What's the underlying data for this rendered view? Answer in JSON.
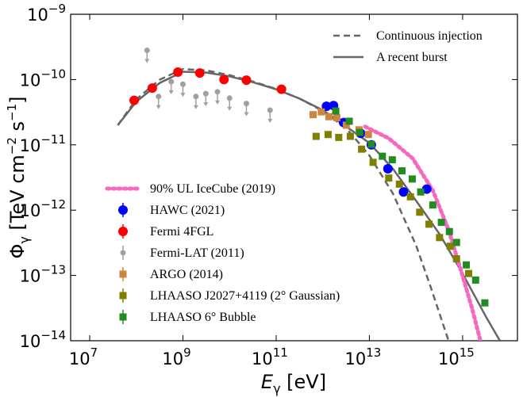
{
  "chart_data": {
    "type": "scatter",
    "log_x": true,
    "log_y": true,
    "xlim": [
      3900000.0,
      1.5e+16
    ],
    "ylim": [
      1e-14,
      1e-09
    ],
    "xticks": [
      {
        "value": 10000000.0,
        "label": "10",
        "exponent": "7"
      },
      {
        "value": 1000000000.0,
        "label": "10",
        "exponent": "9"
      },
      {
        "value": 100000000000.0,
        "label": "10",
        "exponent": "11"
      },
      {
        "value": 10000000000000.0,
        "label": "10",
        "exponent": "13"
      },
      {
        "value": 1000000000000000.0,
        "label": "10",
        "exponent": "15"
      }
    ],
    "yticks": [
      {
        "value": 1e-14,
        "label": "10",
        "exponent": "−14"
      },
      {
        "value": 1e-13,
        "label": "10",
        "exponent": "−13"
      },
      {
        "value": 1e-12,
        "label": "10",
        "exponent": "−12"
      },
      {
        "value": 1e-11,
        "label": "10",
        "exponent": "−11"
      },
      {
        "value": 1e-10,
        "label": "10",
        "exponent": "−10"
      },
      {
        "value": 1e-09,
        "label": "10",
        "exponent": "−9"
      }
    ],
    "x_label": [
      {
        "text": "E",
        "style": "italic"
      },
      {
        "text": "γ",
        "style": "sub"
      },
      {
        "text": " [eV]",
        "style": "normal"
      }
    ],
    "y_label": [
      {
        "text": "Φ",
        "style": "normal"
      },
      {
        "text": "γ",
        "style": "sub"
      },
      {
        "text": " [TeV cm",
        "style": "normal"
      },
      {
        "text": "−2",
        "style": "sup"
      },
      {
        "text": " s",
        "style": "normal"
      },
      {
        "text": "−1",
        "style": "sup"
      },
      {
        "text": "]",
        "style": "normal"
      }
    ],
    "series": [
      {
        "name": "Continuous injection",
        "color": "#666666",
        "style": "dashed",
        "legend": "upper right",
        "x": [
          40000000.0,
          100000000.0,
          320000000.0,
          1000000000.0,
          3200000000.0,
          10000000000.0,
          32000000000.0,
          100000000000.0,
          320000000000.0,
          1000000000000.0,
          3200000000000.0,
          10000000000000.0,
          32000000000000.0,
          100000000000000.0,
          200000000000000.0,
          500000000000000.0
        ],
        "values": [
          2e-11,
          5e-11,
          1e-10,
          1.45e-10,
          1.38e-10,
          1.17e-10,
          9.3e-11,
          7.2e-11,
          5.1e-11,
          3.3e-11,
          1.8e-11,
          6.9e-12,
          1.8e-12,
          2.9e-13,
          7.1e-14,
          1e-14
        ]
      },
      {
        "name": "A recent burst",
        "color": "#666666",
        "style": "solid",
        "legend": "upper right",
        "x": [
          40000000.0,
          100000000.0,
          320000000.0,
          1000000000.0,
          3200000000.0,
          10000000000.0,
          32000000000.0,
          100000000000.0,
          320000000000.0,
          1000000000000.0,
          3200000000000.0,
          10000000000000.0,
          32000000000000.0,
          100000000000000.0,
          320000000000000.0,
          1000000000000000.0,
          3200000000000000.0,
          6300000000000000.0
        ],
        "values": [
          2e-11,
          4.6e-11,
          8.9e-11,
          1.32e-10,
          1.28e-10,
          1.12e-10,
          9.1e-11,
          7.1e-11,
          5.1e-11,
          3.4e-11,
          1.9e-11,
          1.07e-11,
          4.3e-12,
          1.4e-12,
          4.3e-13,
          1.07e-13,
          2.3e-14,
          1e-14
        ]
      },
      {
        "name": "90% UL IceCube (2019)",
        "color": "#f768c0",
        "style": "dotted",
        "legend": "lower left",
        "x": [
          8100000000000.0,
          26000000000000.0,
          85000000000000.0,
          230000000000000.0,
          500000000000000.0,
          910000000000000.0,
          1600000000000000.0,
          2400000000000000.0
        ],
        "values": [
          1.9e-11,
          1.26e-11,
          6.2e-12,
          2e-12,
          5e-13,
          1.23e-13,
          3.1e-14,
          1e-14
        ]
      },
      {
        "name": "HAWC (2021)",
        "color": "#0000ff",
        "style": "circle",
        "legend": "lower left",
        "x": [
          1200000000000.0,
          1700000000000.0,
          2800000000000.0,
          6500000000000.0,
          11000000000000.0,
          25000000000000.0,
          54000000000000.0,
          170000000000000.0
        ],
        "values": [
          3.9e-11,
          4e-11,
          2.2e-11,
          1.5e-11,
          1e-11,
          4.3e-12,
          1.9e-12,
          2.1e-12
        ]
      },
      {
        "name": "Fermi 4FGL",
        "color": "#ff0000",
        "style": "circle",
        "legend": "lower left",
        "x": [
          90000000.0,
          220000000.0,
          780000000.0,
          2300000000.0,
          7600000000.0,
          23000000000.0,
          130000000000.0
        ],
        "values": [
          4.8e-11,
          7.4e-11,
          1.3e-10,
          1.26e-10,
          1e-10,
          9.8e-11,
          7.1e-11
        ]
      },
      {
        "name": "Fermi-LAT (2011)",
        "color": "#a0a0a0",
        "style": "small-circle",
        "upper_limit": true,
        "legend": "lower left",
        "x": [
          170000000.0,
          300000000.0,
          560000000.0,
          1000000000.0,
          1900000000.0,
          3100000000.0,
          5500000000.0,
          10000000000.0,
          23000000000.0,
          74000000000.0
        ],
        "values": [
          2.8e-10,
          5.5e-11,
          9.3e-11,
          8.5e-11,
          5.5e-11,
          6.1e-11,
          6.5e-11,
          5.2e-11,
          4.3e-11,
          3.4e-11
        ]
      },
      {
        "name": "ARGO (2014)",
        "color": "#cd853f",
        "style": "square",
        "legend": "lower left",
        "x": [
          620000000000.0,
          930000000000.0,
          1350000000000.0,
          2000000000000.0,
          3200000000000.0,
          6000000000000.0,
          9500000000000.0
        ],
        "values": [
          2.9e-11,
          3.2e-11,
          2.7e-11,
          2.6e-11,
          2e-11,
          1.7e-11,
          1.44e-11
        ]
      },
      {
        "name": "LHAASO J2027+4119 (2° Gaussian)",
        "color": "#808000",
        "style": "square",
        "legend": "lower left",
        "x": [
          720000000000.0,
          1300000000000.0,
          2200000000000.0,
          3900000000000.0,
          6800000000000.0,
          12000000000000.0,
          26000000000000.0,
          44000000000000.0,
          76000000000000.0,
          120000000000000.0,
          190000000000000.0,
          320000000000000.0,
          540000000000000.0,
          740000000000000.0,
          1350000000000000.0
        ],
        "values": [
          1.35e-11,
          1.44e-11,
          1.3e-11,
          1.35e-11,
          8.6e-12,
          5.4e-12,
          3.1e-12,
          2.5e-12,
          1.6e-12,
          9.3e-13,
          6.1e-13,
          3.8e-13,
          2.8e-13,
          1.8e-13,
          1.07e-13
        ]
      },
      {
        "name": "LHAASO 6° Bubble",
        "color": "#228b22",
        "style": "square",
        "legend": "lower left",
        "x": [
          1900000000000.0,
          3700000000000.0,
          6200000000000.0,
          11000000000000.0,
          19000000000000.0,
          31000000000000.0,
          50000000000000.0,
          83000000000000.0,
          126000000000000.0,
          230000000000000.0,
          350000000000000.0,
          520000000000000.0,
          740000000000000.0,
          1200000000000000.0,
          1900000000000000.0,
          3000000000000000.0
        ],
        "values": [
          3.3e-11,
          2.3e-11,
          1.55e-11,
          1.02e-11,
          6.7e-12,
          5.9e-12,
          4e-12,
          3e-12,
          1.9e-12,
          1.2e-12,
          6.5e-13,
          4.7e-13,
          3.2e-13,
          1.45e-13,
          8.5e-14,
          3.8e-14
        ]
      }
    ]
  }
}
